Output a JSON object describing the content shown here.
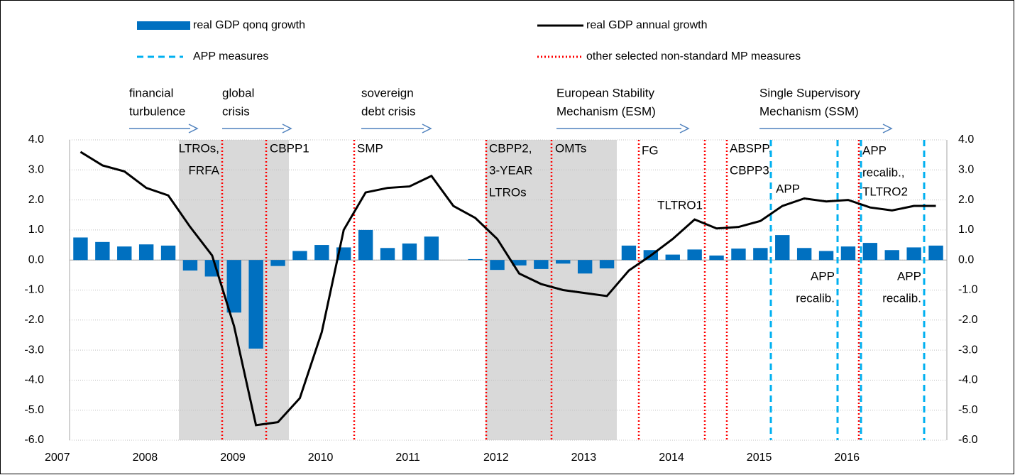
{
  "chart_data": {
    "type": "combo",
    "categories": [
      "2007",
      null,
      null,
      null,
      "2008",
      null,
      null,
      null,
      "2009",
      null,
      null,
      null,
      "2010",
      null,
      null,
      null,
      "2011",
      null,
      null,
      null,
      "2012",
      null,
      null,
      null,
      "2013",
      null,
      null,
      null,
      "2014",
      null,
      null,
      null,
      "2015",
      null,
      null,
      null,
      "2016",
      null,
      null,
      null
    ],
    "series": [
      {
        "name": "real GDP qonq growth",
        "type": "bar",
        "color": "#0070c0",
        "values": [
          0.75,
          0.6,
          0.45,
          0.52,
          0.48,
          -0.35,
          -0.55,
          -1.75,
          -2.95,
          -0.2,
          0.3,
          0.5,
          0.42,
          1.0,
          0.4,
          0.55,
          0.78,
          0.0,
          0.03,
          -0.33,
          -0.18,
          -0.3,
          -0.12,
          -0.45,
          -0.28,
          0.48,
          0.33,
          0.18,
          0.35,
          0.15,
          0.38,
          0.4,
          0.83,
          0.4,
          0.3,
          0.45,
          0.57,
          0.33,
          0.42,
          0.48
        ]
      },
      {
        "name": "real GDP annual growth",
        "type": "line",
        "color": "#000000",
        "values": [
          3.6,
          3.15,
          2.95,
          2.4,
          2.15,
          1.1,
          0.15,
          -2.2,
          -5.5,
          -5.4,
          -4.6,
          -2.4,
          1.0,
          2.25,
          2.4,
          2.45,
          2.8,
          1.8,
          1.4,
          0.7,
          -0.45,
          -0.8,
          -1.0,
          -1.1,
          -1.2,
          -0.35,
          0.15,
          0.7,
          1.35,
          1.05,
          1.1,
          1.3,
          1.8,
          2.05,
          1.95,
          2.0,
          1.75,
          1.65,
          1.8,
          1.8
        ]
      }
    ],
    "ylim": [
      -6,
      4
    ],
    "yticks": [
      {
        "value": -6,
        "label": "-6.0"
      },
      {
        "value": -5,
        "label": "-5.0"
      },
      {
        "value": -4,
        "label": "-4.0"
      },
      {
        "value": -3,
        "label": "-3.0"
      },
      {
        "value": -2,
        "label": "-2.0"
      },
      {
        "value": -1,
        "label": "-1.0"
      },
      {
        "value": 0,
        "label": "0.0"
      },
      {
        "value": 1,
        "label": "1.0"
      },
      {
        "value": 2,
        "label": "2.0"
      },
      {
        "value": 3,
        "label": "3.0"
      },
      {
        "value": 4,
        "label": "4.0"
      }
    ],
    "y2lim": [
      -6,
      4
    ],
    "y2ticks": [
      {
        "value": -6,
        "label": "-6.0"
      },
      {
        "value": -5,
        "label": "-5.0"
      },
      {
        "value": -4,
        "label": "-4.0"
      },
      {
        "value": -3,
        "label": "-3.0"
      },
      {
        "value": -2,
        "label": "-2.0"
      },
      {
        "value": -1,
        "label": "-1.0"
      },
      {
        "value": 0,
        "label": "0.0"
      },
      {
        "value": 1,
        "label": "1.0"
      },
      {
        "value": 2,
        "label": "2.0"
      },
      {
        "value": 3,
        "label": "3.0"
      },
      {
        "value": 4,
        "label": "4.0"
      }
    ],
    "grid": true,
    "measure_styles": [
      {
        "name": "APP measures",
        "style": "dashed",
        "color": "#00b0f0"
      },
      {
        "name": "other selected non-standard MP measures",
        "style": "dotted",
        "color": "#ff0000"
      }
    ],
    "periods": [
      {
        "lines": [
          "financial",
          "turbulence"
        ]
      },
      {
        "lines": [
          "global",
          "crisis"
        ]
      },
      {
        "lines": [
          "sovereign",
          "debt crisis"
        ]
      },
      {
        "lines": [
          "European Stability",
          "Mechanism (ESM)"
        ]
      },
      {
        "lines": [
          "Single Supervisory",
          "Mechanism (SSM)"
        ]
      }
    ],
    "measures": [
      {
        "lines": [
          "LTROs,",
          "FRFA"
        ],
        "style": 1
      },
      {
        "lines": [
          "CBPP1"
        ],
        "style": 1
      },
      {
        "lines": [
          "SMP"
        ],
        "style": 1
      },
      {
        "lines": [
          "CBPP2,",
          "3-YEAR",
          "LTROs"
        ],
        "style": 1
      },
      {
        "lines": [
          "OMTs"
        ],
        "style": 1
      },
      {
        "lines": [
          "FG"
        ],
        "style": 1
      },
      {
        "lines": [
          "TLTRO1"
        ],
        "style": 1
      },
      {
        "lines": [
          "ABSPP,",
          "CBPP3"
        ],
        "style": 1
      },
      {
        "lines": [
          "APP"
        ],
        "style": 0
      },
      {
        "lines": [
          "APP",
          "recalib."
        ],
        "style": 0
      },
      {
        "lines": [
          "TLTRO2"
        ],
        "style": 1
      },
      {
        "lines": [
          "APP",
          "recalib.,"
        ],
        "style": 0
      },
      {
        "lines": [
          "APP",
          "recalib."
        ],
        "style": 0
      }
    ]
  }
}
